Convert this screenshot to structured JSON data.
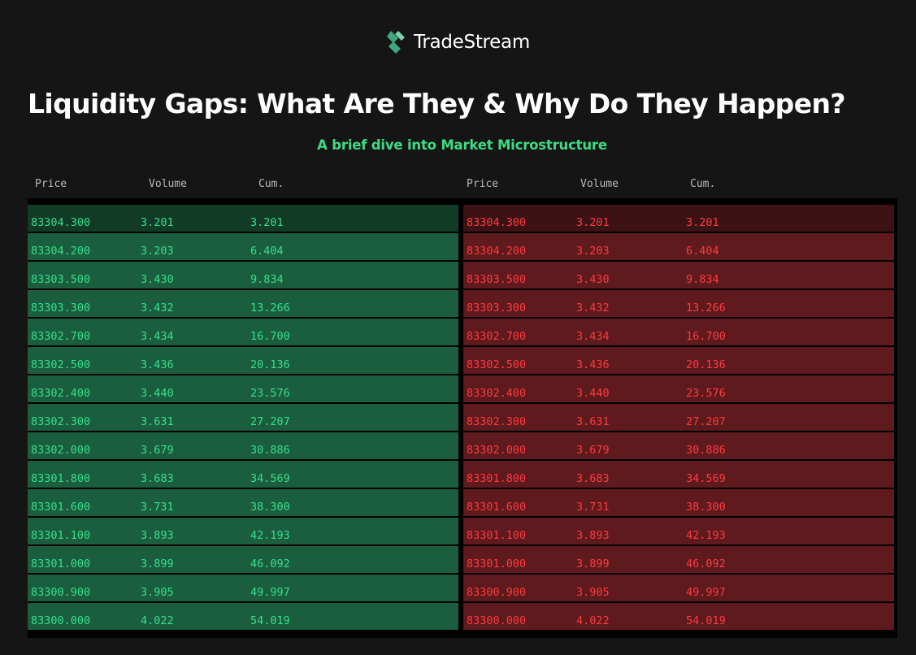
{
  "brand": {
    "name": "TradeStream",
    "icon": "bolt-logo-icon",
    "accent": "#3ddc84"
  },
  "title": "Liquidity Gaps: What Are They & Why Do They Happen?",
  "subtitle": "A brief dive into Market Microstructure",
  "columns": {
    "price": "Price",
    "volume": "Volume",
    "cum": "Cum."
  },
  "colors": {
    "bid_text": "#35e08a",
    "bid_bg": "#1b5d3f",
    "ask_text": "#ff3a42",
    "ask_bg": "#5e1a1c"
  },
  "bids": [
    {
      "price": "83304.300",
      "volume": "3.201",
      "cum": "3.201"
    },
    {
      "price": "83304.200",
      "volume": "3.203",
      "cum": "6.404"
    },
    {
      "price": "83303.500",
      "volume": "3.430",
      "cum": "9.834"
    },
    {
      "price": "83303.300",
      "volume": "3.432",
      "cum": "13.266"
    },
    {
      "price": "83302.700",
      "volume": "3.434",
      "cum": "16.700"
    },
    {
      "price": "83302.500",
      "volume": "3.436",
      "cum": "20.136"
    },
    {
      "price": "83302.400",
      "volume": "3.440",
      "cum": "23.576"
    },
    {
      "price": "83302.300",
      "volume": "3.631",
      "cum": "27.207"
    },
    {
      "price": "83302.000",
      "volume": "3.679",
      "cum": "30.886"
    },
    {
      "price": "83301.800",
      "volume": "3.683",
      "cum": "34.569"
    },
    {
      "price": "83301.600",
      "volume": "3.731",
      "cum": "38.300"
    },
    {
      "price": "83301.100",
      "volume": "3.893",
      "cum": "42.193"
    },
    {
      "price": "83301.000",
      "volume": "3.899",
      "cum": "46.092"
    },
    {
      "price": "83300.900",
      "volume": "3.905",
      "cum": "49.997"
    },
    {
      "price": "83300.000",
      "volume": "4.022",
      "cum": "54.019"
    }
  ],
  "asks": [
    {
      "price": "83304.300",
      "volume": "3.201",
      "cum": "3.201"
    },
    {
      "price": "83304.200",
      "volume": "3.203",
      "cum": "6.404"
    },
    {
      "price": "83303.500",
      "volume": "3.430",
      "cum": "9.834"
    },
    {
      "price": "83303.300",
      "volume": "3.432",
      "cum": "13.266"
    },
    {
      "price": "83302.700",
      "volume": "3.434",
      "cum": "16.700"
    },
    {
      "price": "83302.500",
      "volume": "3.436",
      "cum": "20.136"
    },
    {
      "price": "83302.400",
      "volume": "3.440",
      "cum": "23.576"
    },
    {
      "price": "83302.300",
      "volume": "3.631",
      "cum": "27.207"
    },
    {
      "price": "83302.000",
      "volume": "3.679",
      "cum": "30.886"
    },
    {
      "price": "83301.800",
      "volume": "3.683",
      "cum": "34.569"
    },
    {
      "price": "83301.600",
      "volume": "3.731",
      "cum": "38.300"
    },
    {
      "price": "83301.100",
      "volume": "3.893",
      "cum": "42.193"
    },
    {
      "price": "83301.000",
      "volume": "3.899",
      "cum": "46.092"
    },
    {
      "price": "83300.900",
      "volume": "3.905",
      "cum": "49.997"
    },
    {
      "price": "83300.000",
      "volume": "4.022",
      "cum": "54.019"
    }
  ]
}
